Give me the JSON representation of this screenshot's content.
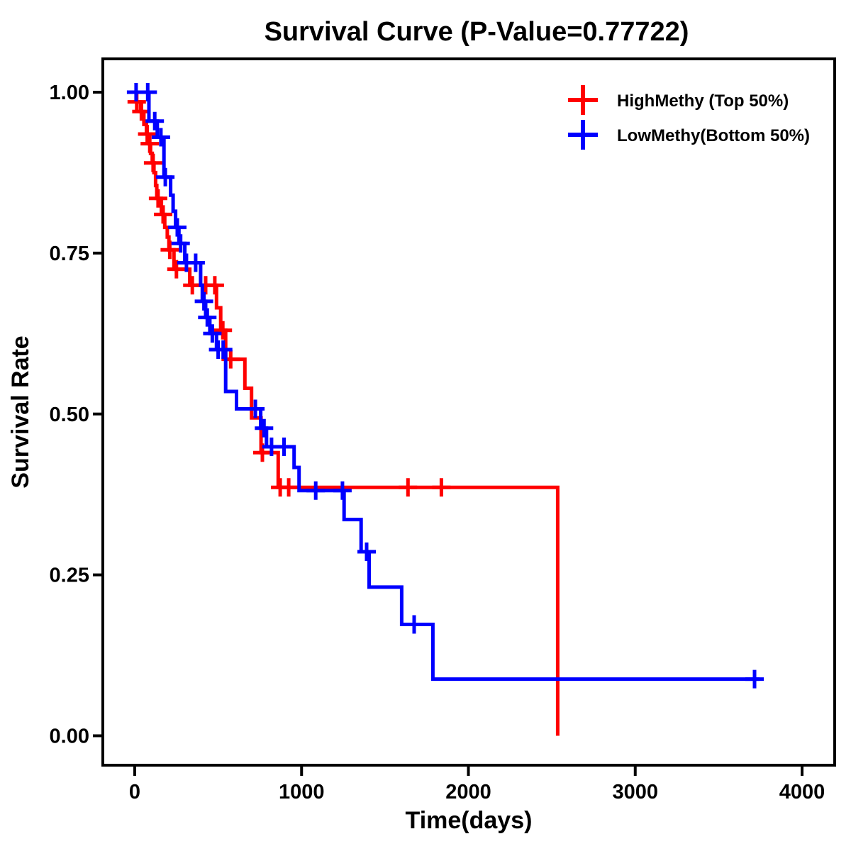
{
  "title": "Survival Curve (P-Value=0.77722)",
  "axes": {
    "x": {
      "label": "Time(days)",
      "tick_labels": [
        "0",
        "1000",
        "2000",
        "3000",
        "4000"
      ],
      "tick_values": [
        0,
        1000,
        2000,
        3000,
        4000
      ]
    },
    "y": {
      "label": "Survival Rate",
      "tick_labels": [
        "0.00",
        "0.25",
        "0.50",
        "0.75",
        "1.00"
      ],
      "tick_values": [
        0,
        0.25,
        0.5,
        0.75,
        1
      ]
    }
  },
  "legend": {
    "items": [
      {
        "label": "HighMethy (Top 50%)",
        "marker": "plus-icon",
        "color": "#FF0000"
      },
      {
        "label": "LowMethy(Bottom 50%)",
        "marker": "plus-icon",
        "color": "#0000FF"
      }
    ]
  },
  "colors": {
    "high": "#FF0000",
    "low": "#0000FF",
    "axis": "#000000",
    "background": "#FFFFFF"
  },
  "chart_data": {
    "type": "line",
    "subtype": "kaplan-meier-step",
    "title": "Survival Curve (P-Value=0.77722)",
    "p_value": "0.77722",
    "xlabel": "Time(days)",
    "ylabel": "Survival Rate",
    "xlim": [
      -190,
      4200
    ],
    "ylim": [
      -0.05,
      1.05
    ],
    "x_ticks": [
      0,
      1000,
      2000,
      3000,
      4000
    ],
    "y_ticks": [
      0,
      0.25,
      0.5,
      0.75,
      1
    ],
    "grid": false,
    "legend_position": "top-right",
    "series": [
      {
        "name": "HighMethy (Top 50%)",
        "color": "#FF0000",
        "steps": [
          [
            0,
            1.0
          ],
          [
            10,
            0.985
          ],
          [
            35,
            0.97
          ],
          [
            55,
            0.95
          ],
          [
            70,
            0.935
          ],
          [
            85,
            0.92
          ],
          [
            95,
            0.905
          ],
          [
            105,
            0.89
          ],
          [
            115,
            0.875
          ],
          [
            125,
            0.855
          ],
          [
            132,
            0.835
          ],
          [
            160,
            0.81
          ],
          [
            180,
            0.79
          ],
          [
            195,
            0.775
          ],
          [
            205,
            0.755
          ],
          [
            235,
            0.725
          ],
          [
            330,
            0.7
          ],
          [
            490,
            0.665
          ],
          [
            515,
            0.63
          ],
          [
            545,
            0.585
          ],
          [
            660,
            0.54
          ],
          [
            700,
            0.494
          ],
          [
            757,
            0.44
          ],
          [
            860,
            0.386
          ],
          [
            2535,
            0.0
          ]
        ],
        "censors": [
          [
            12,
            0.985
          ],
          [
            40,
            0.97
          ],
          [
            75,
            0.935
          ],
          [
            90,
            0.92
          ],
          [
            110,
            0.89
          ],
          [
            140,
            0.835
          ],
          [
            170,
            0.81
          ],
          [
            210,
            0.755
          ],
          [
            250,
            0.725
          ],
          [
            345,
            0.7
          ],
          [
            425,
            0.7
          ],
          [
            480,
            0.7
          ],
          [
            528,
            0.63
          ],
          [
            575,
            0.585
          ],
          [
            765,
            0.44
          ],
          [
            872,
            0.386
          ],
          [
            923,
            0.386
          ],
          [
            1638,
            0.386
          ],
          [
            1838,
            0.386
          ]
        ]
      },
      {
        "name": "LowMethy(Bottom 50%)",
        "color": "#0000FF",
        "steps": [
          [
            0,
            1.0
          ],
          [
            85,
            0.955
          ],
          [
            135,
            0.93
          ],
          [
            175,
            0.868
          ],
          [
            215,
            0.84
          ],
          [
            230,
            0.815
          ],
          [
            245,
            0.79
          ],
          [
            265,
            0.765
          ],
          [
            300,
            0.735
          ],
          [
            395,
            0.7
          ],
          [
            405,
            0.675
          ],
          [
            425,
            0.65
          ],
          [
            450,
            0.625
          ],
          [
            490,
            0.6
          ],
          [
            545,
            0.535
          ],
          [
            610,
            0.508
          ],
          [
            755,
            0.478
          ],
          [
            790,
            0.449
          ],
          [
            955,
            0.417
          ],
          [
            985,
            0.381
          ],
          [
            1255,
            0.336
          ],
          [
            1357,
            0.286
          ],
          [
            1405,
            0.231
          ],
          [
            1600,
            0.173
          ],
          [
            1787,
            0.088
          ],
          [
            3745,
            0.088
          ]
        ],
        "censors": [
          [
            8,
            1.0
          ],
          [
            78,
            1.0
          ],
          [
            120,
            0.955
          ],
          [
            157,
            0.93
          ],
          [
            183,
            0.868
          ],
          [
            255,
            0.79
          ],
          [
            275,
            0.765
          ],
          [
            310,
            0.735
          ],
          [
            365,
            0.735
          ],
          [
            415,
            0.675
          ],
          [
            435,
            0.65
          ],
          [
            465,
            0.625
          ],
          [
            500,
            0.6
          ],
          [
            530,
            0.6
          ],
          [
            723,
            0.508
          ],
          [
            775,
            0.478
          ],
          [
            820,
            0.449
          ],
          [
            895,
            0.449
          ],
          [
            1085,
            0.381
          ],
          [
            1245,
            0.381
          ],
          [
            1390,
            0.286
          ],
          [
            1675,
            0.173
          ],
          [
            3715,
            0.088
          ]
        ]
      }
    ]
  }
}
